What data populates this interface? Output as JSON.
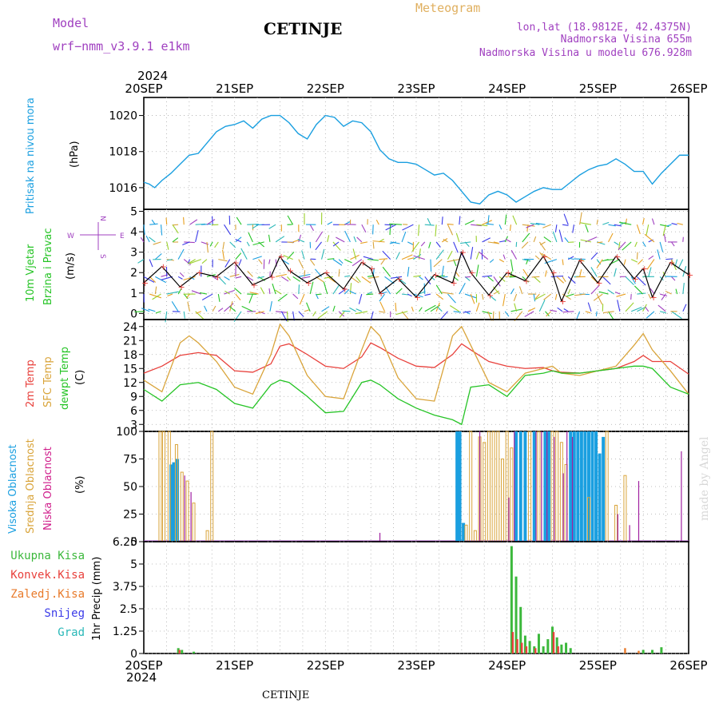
{
  "header": {
    "model_label": "Model",
    "model_name": "wrf−nmm_v3.9.1  e1km",
    "title": "CETINJE",
    "meteogram_label": "Meteogram",
    "coords": "lon,lat (18.9812E, 42.4375N)",
    "elevation": "Nadmorska Visina 655m",
    "model_elevation": "Nadmorska Visina u modelu 676.928m",
    "year_top": "2024",
    "year_bottom": "2024",
    "footer_station": "CETINJE",
    "credit": "made by Angel"
  },
  "colors": {
    "pressure": "#1a9fe0",
    "temp2m": "#e8413c",
    "sfc": "#d9a43a",
    "dewpt": "#26c426",
    "high_cloud": "#1a9fe0",
    "mid_cloud": "#d9a43a",
    "low_cloud": "#a020a0",
    "total_precip": "#3cb83c",
    "conv_precip": "#e8413c",
    "frozen_precip": "#e87a2a",
    "snow": "#3a3ae8",
    "hail": "#2ab8b8",
    "purple_label": "#a040c0",
    "model_label": "#a040c0",
    "meteogram_label": "#e0b060"
  },
  "x_axis": {
    "ticks": [
      "20SEP",
      "21SEP",
      "22SEP",
      "23SEP",
      "24SEP",
      "25SEP",
      "26SEP"
    ]
  },
  "panels": {
    "pressure": {
      "label_color_text": "Pritisak na nivou mora",
      "unit": "(hPa)"
    },
    "wind": {
      "label1": "10m Vjetar",
      "label2": "Brzina i Pravac",
      "unit": "(m/s)",
      "compass_n": "N",
      "compass_s": "S",
      "compass_w": "W",
      "compass_e": "E"
    },
    "temp": {
      "label1": "2m Temp",
      "label2": "SFC Temp",
      "label3": "dewpt Temp",
      "unit": "(C)"
    },
    "cloud": {
      "label1": "Visoka Oblacnost",
      "label2": "Srednja Oblacnost",
      "label3": "Niska Oblacnost",
      "unit": "(%)"
    },
    "precip": {
      "unit": "1hr Precip (mm)",
      "legend": [
        "Ukupna Kisa",
        "Konvek.Kisa",
        "Zaledj.Kisa",
        "Snijeg",
        "Grad"
      ]
    }
  },
  "chart_data": [
    {
      "type": "line",
      "title": "",
      "ylabel": "Pritisak na nivou mora (hPa)",
      "ylim": [
        1014.8,
        1021
      ],
      "yticks": [
        "1016",
        "1018",
        "1020"
      ],
      "x_unit": "days since 20SEP 00Z",
      "series": [
        {
          "name": "Pritisak na nivou mora",
          "x": [
            0,
            0.06,
            0.12,
            0.2,
            0.3,
            0.4,
            0.5,
            0.6,
            0.7,
            0.8,
            0.9,
            1.0,
            1.1,
            1.2,
            1.3,
            1.4,
            1.5,
            1.6,
            1.7,
            1.8,
            1.9,
            2.0,
            2.1,
            2.2,
            2.3,
            2.4,
            2.5,
            2.6,
            2.7,
            2.8,
            2.9,
            3.0,
            3.1,
            3.2,
            3.3,
            3.4,
            3.5,
            3.6,
            3.7,
            3.8,
            3.9,
            4.0,
            4.1,
            4.2,
            4.3,
            4.4,
            4.5,
            4.6,
            4.7,
            4.8,
            4.9,
            5.0,
            5.1,
            5.2,
            5.3,
            5.4,
            5.5,
            5.6,
            5.7,
            5.8,
            5.9,
            6.0
          ],
          "y": [
            1016.3,
            1016.2,
            1016.0,
            1016.4,
            1016.8,
            1017.3,
            1017.8,
            1017.9,
            1018.5,
            1019.1,
            1019.4,
            1019.5,
            1019.7,
            1019.3,
            1019.8,
            1020.0,
            1020.0,
            1019.6,
            1019.0,
            1018.7,
            1019.5,
            1020.0,
            1019.9,
            1019.4,
            1019.7,
            1019.6,
            1019.1,
            1018.1,
            1017.6,
            1017.4,
            1017.4,
            1017.3,
            1017.0,
            1016.7,
            1016.8,
            1016.4,
            1015.8,
            1015.2,
            1015.1,
            1015.6,
            1015.8,
            1015.6,
            1015.2,
            1015.5,
            1015.8,
            1016.0,
            1015.9,
            1015.9,
            1016.3,
            1016.7,
            1017.0,
            1017.2,
            1017.3,
            1017.6,
            1017.3,
            1016.9,
            1016.9,
            1016.2,
            1016.8,
            1017.3,
            1017.8,
            1017.8
          ]
        }
      ]
    },
    {
      "type": "line",
      "title": "",
      "ylabel": "10m Vjetar Brzina i Pravac (m/s)",
      "ylim": [
        -0.3,
        5.1
      ],
      "yticks": [
        "0",
        "1",
        "2",
        "3",
        "4",
        "5"
      ],
      "series": [
        {
          "name": "Brzina",
          "x": [
            0,
            0.2,
            0.4,
            0.6,
            0.8,
            1.0,
            1.2,
            1.4,
            1.5,
            1.6,
            1.8,
            2.0,
            2.2,
            2.4,
            2.5,
            2.6,
            2.8,
            3.0,
            3.2,
            3.4,
            3.5,
            3.6,
            3.8,
            4.0,
            4.2,
            4.4,
            4.5,
            4.6,
            4.8,
            5.0,
            5.2,
            5.4,
            5.5,
            5.6,
            5.8,
            6.0
          ],
          "y": [
            1.5,
            2.3,
            1.3,
            2.0,
            1.8,
            2.5,
            1.4,
            1.8,
            2.8,
            2.1,
            1.5,
            2.0,
            1.2,
            2.5,
            2.2,
            1.0,
            1.7,
            0.8,
            1.9,
            1.5,
            3.0,
            2.0,
            0.9,
            2.0,
            1.6,
            2.8,
            2.0,
            0.6,
            2.6,
            1.5,
            2.8,
            1.7,
            2.2,
            0.8,
            2.5,
            1.9
          ]
        }
      ]
    },
    {
      "type": "line",
      "title": "",
      "ylabel": "(C)",
      "ylim": [
        1.5,
        25.5
      ],
      "yticks": [
        "3",
        "6",
        "9",
        "12",
        "15",
        "18",
        "21",
        "24"
      ],
      "series": [
        {
          "name": "2m Temp",
          "x": [
            0,
            0.2,
            0.4,
            0.6,
            0.8,
            1.0,
            1.2,
            1.4,
            1.5,
            1.6,
            1.8,
            2.0,
            2.2,
            2.4,
            2.5,
            2.6,
            2.8,
            3.0,
            3.2,
            3.4,
            3.5,
            3.6,
            3.8,
            4.0,
            4.2,
            4.4,
            4.5,
            4.6,
            4.8,
            5.0,
            5.2,
            5.4,
            5.5,
            5.6,
            5.8,
            6.0
          ],
          "y": [
            14.0,
            15.5,
            17.8,
            18.4,
            17.8,
            14.5,
            14.2,
            16.0,
            19.8,
            20.3,
            18.0,
            15.5,
            15.0,
            17.5,
            20.5,
            19.5,
            17.2,
            15.5,
            15.2,
            18.0,
            20.3,
            19.0,
            16.5,
            15.5,
            15.0,
            15.2,
            14.5,
            14.2,
            14.0,
            14.5,
            15.0,
            16.5,
            17.8,
            16.5,
            16.5,
            13.8
          ]
        },
        {
          "name": "SFC Temp",
          "x": [
            0,
            0.2,
            0.4,
            0.5,
            0.6,
            0.8,
            1.0,
            1.2,
            1.4,
            1.5,
            1.6,
            1.8,
            2.0,
            2.2,
            2.4,
            2.5,
            2.6,
            2.8,
            3.0,
            3.2,
            3.4,
            3.5,
            3.6,
            3.8,
            4.0,
            4.2,
            4.4,
            4.5,
            4.6,
            4.8,
            5.0,
            5.2,
            5.4,
            5.5,
            5.6,
            5.8,
            6.0
          ],
          "y": [
            12.5,
            10.0,
            20.5,
            22.0,
            20.5,
            16.5,
            11.0,
            9.5,
            18.0,
            24.5,
            22.0,
            13.5,
            9.0,
            8.5,
            19.0,
            24.0,
            22.0,
            13.0,
            8.5,
            8.0,
            22.0,
            24.0,
            20.0,
            12.0,
            10.0,
            14.0,
            15.0,
            15.5,
            14.0,
            13.5,
            14.5,
            15.5,
            20.0,
            22.5,
            19.0,
            14.5,
            9.5
          ]
        },
        {
          "name": "dewpt Temp",
          "x": [
            0,
            0.2,
            0.4,
            0.6,
            0.8,
            1.0,
            1.2,
            1.4,
            1.5,
            1.6,
            1.8,
            2.0,
            2.2,
            2.4,
            2.5,
            2.6,
            2.8,
            3.0,
            3.2,
            3.4,
            3.5,
            3.6,
            3.8,
            4.0,
            4.2,
            4.4,
            4.5,
            4.6,
            4.8,
            5.0,
            5.2,
            5.4,
            5.5,
            5.6,
            5.8,
            6.0
          ],
          "y": [
            10.5,
            8.0,
            11.5,
            12.0,
            10.5,
            7.5,
            6.5,
            11.5,
            12.5,
            12.0,
            9.0,
            5.5,
            5.8,
            12.0,
            12.5,
            11.5,
            8.5,
            6.5,
            5.0,
            4.0,
            3.0,
            11.0,
            11.5,
            9.0,
            13.5,
            14.0,
            14.5,
            14.0,
            14.0,
            14.5,
            15.0,
            15.5,
            15.5,
            15.0,
            11.0,
            9.5
          ]
        }
      ]
    },
    {
      "type": "bar",
      "title": "",
      "ylabel": "(%)",
      "ylim": [
        0,
        100
      ],
      "yticks": [
        "0",
        "25",
        "50",
        "75",
        "100"
      ],
      "series": [
        {
          "name": "Visoka Oblacnost",
          "x": [
            0.3,
            0.33,
            0.37,
            3.45,
            3.48,
            3.52,
            4.1,
            4.15,
            4.2,
            4.3,
            4.42,
            4.46,
            4.7,
            4.74,
            4.78,
            4.82,
            4.86,
            4.9,
            4.94,
            4.98,
            5.02,
            5.06
          ],
          "y": [
            70,
            72,
            75,
            100,
            100,
            17,
            100,
            100,
            100,
            100,
            100,
            100,
            100,
            100,
            100,
            100,
            100,
            100,
            100,
            100,
            80,
            95
          ]
        },
        {
          "name": "Srednja Oblacnost",
          "x": [
            0.18,
            0.22,
            0.28,
            0.36,
            0.42,
            0.48,
            0.55,
            0.7,
            0.75,
            3.55,
            3.6,
            3.65,
            3.7,
            3.75,
            3.8,
            3.85,
            3.9,
            3.95,
            4.0,
            4.05,
            4.25,
            4.35,
            4.5,
            4.55,
            4.6,
            4.65,
            4.9,
            5.1,
            5.2,
            5.3
          ],
          "y": [
            100,
            100,
            100,
            88,
            63,
            55,
            35,
            10,
            100,
            15,
            100,
            10,
            95,
            90,
            100,
            100,
            100,
            75,
            100,
            85,
            100,
            100,
            100,
            100,
            90,
            70,
            40,
            100,
            33,
            60
          ]
        },
        {
          "name": "Niska Oblacnost",
          "x": [
            0.45,
            0.52,
            2.6,
            3.7,
            4.02,
            4.08,
            4.32,
            4.38,
            4.44,
            4.52,
            4.62,
            4.66,
            4.72,
            5.22,
            5.35,
            5.45,
            5.92
          ],
          "y": [
            60,
            45,
            8,
            100,
            40,
            100,
            100,
            100,
            100,
            95,
            62,
            100,
            95,
            25,
            15,
            55,
            82
          ]
        }
      ]
    },
    {
      "type": "bar",
      "title": "",
      "ylabel": "1hr Precip (mm)",
      "ylim": [
        0,
        6.25
      ],
      "yticks": [
        "0",
        "1.25",
        "2.5",
        "3.75",
        "5",
        "6.25"
      ],
      "series": [
        {
          "name": "Ukupna Kisa",
          "x": [
            0.38,
            0.42,
            0.55,
            4.05,
            4.1,
            4.15,
            4.2,
            4.25,
            4.3,
            4.35,
            4.4,
            4.45,
            4.5,
            4.55,
            4.6,
            4.65,
            4.7,
            5.5,
            5.6,
            5.7
          ],
          "y": [
            0.3,
            0.2,
            0.1,
            6.0,
            4.3,
            2.6,
            1.0,
            0.7,
            0.4,
            1.1,
            0.4,
            0.8,
            1.5,
            0.9,
            0.5,
            0.6,
            0.3,
            0.2,
            0.2,
            0.35
          ]
        },
        {
          "name": "Konvek.Kisa",
          "x": [
            0.38,
            4.05,
            4.1,
            4.15,
            4.2,
            4.3,
            4.5,
            4.55
          ],
          "y": [
            0.2,
            1.2,
            0.8,
            0.6,
            0.4,
            0.3,
            1.2,
            0.4
          ]
        },
        {
          "name": "Zaledj.Kisa",
          "x": [
            5.3,
            5.45
          ],
          "y": [
            0.3,
            0.15
          ]
        },
        {
          "name": "Snijeg",
          "x": [],
          "y": []
        },
        {
          "name": "Grad",
          "x": [],
          "y": []
        }
      ]
    }
  ]
}
